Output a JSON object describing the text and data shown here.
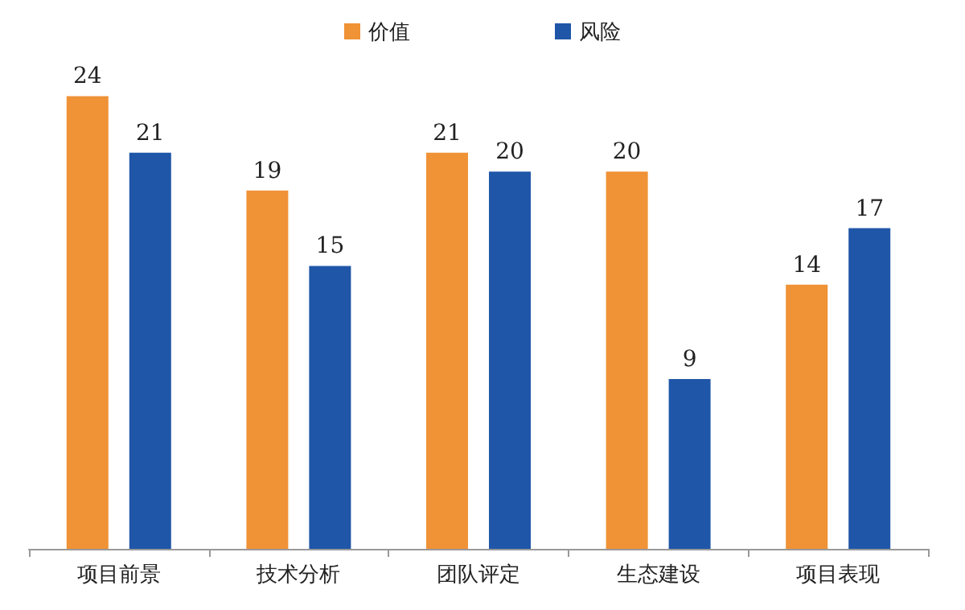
{
  "chart_data": {
    "type": "bar",
    "categories": [
      "项目前景",
      "技术分析",
      "团队评定",
      "生态建设",
      "项目表现"
    ],
    "series": [
      {
        "name": "价值",
        "color": "#f09236",
        "values": [
          24,
          19,
          21,
          20,
          14
        ]
      },
      {
        "name": "风险",
        "color": "#1f56a8",
        "values": [
          21,
          15,
          20,
          9,
          17
        ]
      }
    ],
    "data_labels": true,
    "legend": "top",
    "grid": false,
    "tick_labels": "x"
  }
}
